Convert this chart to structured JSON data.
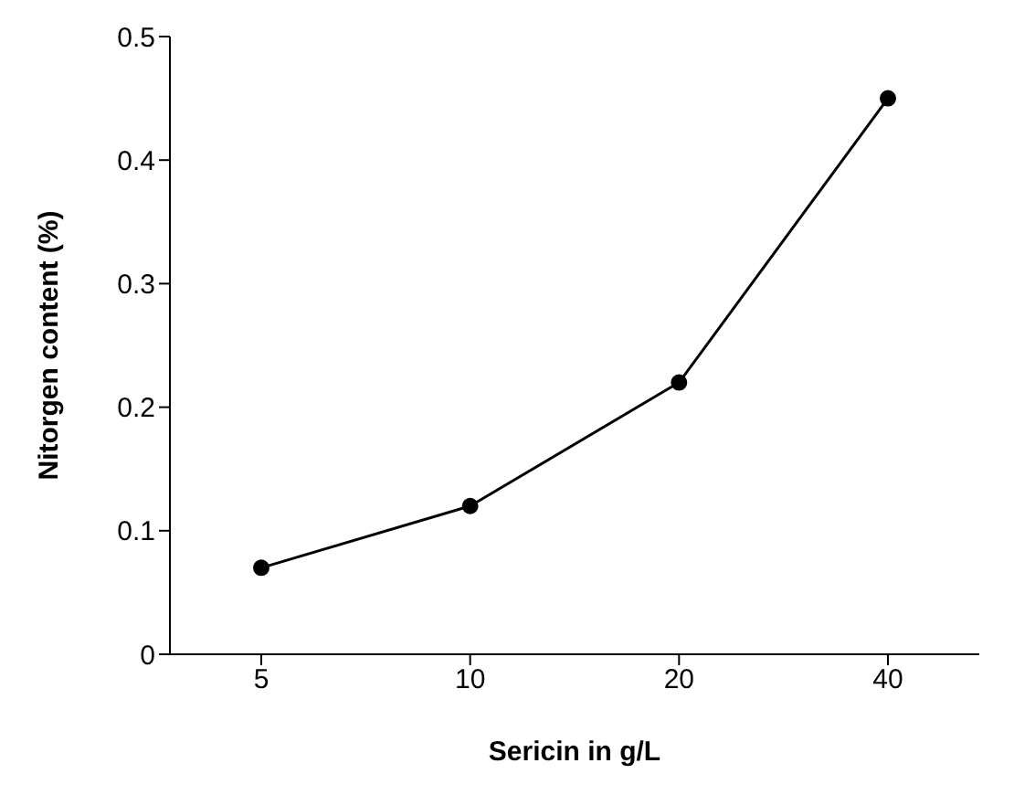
{
  "chart_data": {
    "type": "line",
    "xlabel": "Sericin in g/L",
    "ylabel": "Nitorgen content (%)",
    "categories": [
      "5",
      "10",
      "20",
      "40"
    ],
    "series": [
      {
        "color": "#000000",
        "values": [
          0.07,
          0.12,
          0.22,
          0.45
        ]
      }
    ],
    "ylim": [
      0,
      0.5
    ],
    "yticks": [
      0,
      0.1,
      0.2,
      0.3,
      0.4,
      0.5
    ],
    "grid": false,
    "legend": false,
    "marker": "circle",
    "line_style": "solid"
  }
}
